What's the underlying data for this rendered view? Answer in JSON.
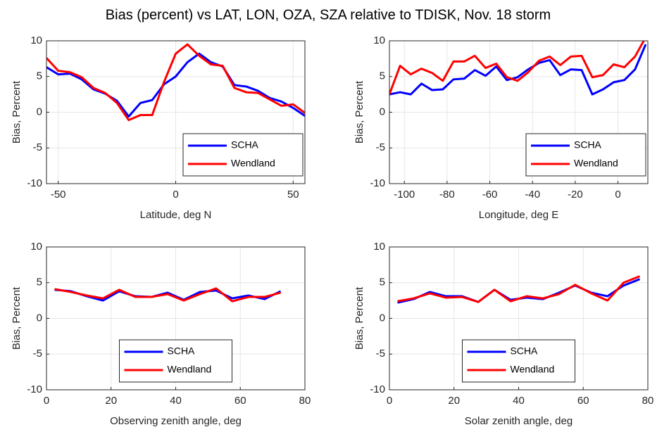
{
  "title": "Bias (percent) vs LAT, LON, OZA, SZA relative to TDISK, Nov. 18 storm",
  "chart_data": [
    {
      "type": "line",
      "xlabel": "Latitude, deg N",
      "ylabel": "Bias, Percent",
      "x": [
        -55,
        -50,
        -45,
        -40,
        -35,
        -30,
        -25,
        -20,
        -15,
        -10,
        -5,
        0,
        5,
        10,
        15,
        20,
        25,
        30,
        35,
        40,
        45,
        50,
        55
      ],
      "series": [
        {
          "name": "SCHA",
          "color": "#0000ff",
          "values": [
            6.3,
            5.3,
            5.4,
            4.6,
            3.2,
            2.6,
            1.6,
            -0.6,
            1.3,
            1.7,
            3.9,
            5.0,
            7.0,
            8.2,
            7.0,
            6.4,
            3.8,
            3.6,
            3.0,
            2.0,
            1.5,
            0.6,
            -0.5
          ]
        },
        {
          "name": "Wendland",
          "color": "#ff0000",
          "values": [
            7.6,
            5.8,
            5.6,
            4.9,
            3.4,
            2.7,
            1.3,
            -1.1,
            -0.4,
            -0.4,
            4.2,
            8.2,
            9.5,
            7.9,
            6.7,
            6.5,
            3.4,
            2.8,
            2.7,
            1.8,
            0.9,
            1.1,
            -0.1
          ]
        }
      ],
      "xlim": [
        -55,
        55
      ],
      "ylim": [
        -10,
        10
      ],
      "xticks": [
        -50,
        0,
        50
      ],
      "yticks": [
        -10,
        -5,
        0,
        5,
        10
      ],
      "grid": true,
      "legend": "lower right"
    },
    {
      "type": "line",
      "xlabel": "Longitude, deg E",
      "ylabel": "Bias, Percent",
      "x": [
        -107,
        -102,
        -97,
        -92,
        -87,
        -82,
        -77,
        -72,
        -67,
        -62,
        -57,
        -52,
        -47,
        -42,
        -37,
        -32,
        -27,
        -22,
        -17,
        -12,
        -7,
        -2,
        3,
        8,
        13
      ],
      "series": [
        {
          "name": "SCHA",
          "color": "#0000ff",
          "values": [
            2.5,
            2.8,
            2.5,
            4.0,
            3.1,
            3.2,
            4.6,
            4.7,
            5.9,
            5.1,
            6.4,
            4.5,
            4.9,
            6.0,
            6.9,
            7.3,
            5.2,
            6.0,
            5.9,
            2.5,
            3.2,
            4.2,
            4.5,
            6.0,
            9.5
          ]
        },
        {
          "name": "Wendland",
          "color": "#ff0000",
          "values": [
            2.5,
            6.5,
            5.3,
            6.1,
            5.5,
            4.4,
            7.1,
            7.1,
            7.9,
            6.2,
            6.8,
            4.9,
            4.4,
            5.6,
            7.2,
            7.8,
            6.6,
            7.8,
            7.9,
            4.9,
            5.2,
            6.7,
            6.3,
            7.8,
            10.5
          ]
        }
      ],
      "xlim": [
        -107,
        14
      ],
      "ylim": [
        -10,
        10
      ],
      "xticks": [
        -100,
        -80,
        -60,
        -40,
        -20,
        0
      ],
      "yticks": [
        -10,
        -5,
        0,
        5,
        10
      ],
      "grid": true,
      "legend": "lower right"
    },
    {
      "type": "line",
      "xlabel": "Observing zenith angle, deg",
      "ylabel": "Bias, Percent",
      "x": [
        2.5,
        7.5,
        12.5,
        17.5,
        22.5,
        27.5,
        32.5,
        37.5,
        42.5,
        47.5,
        52.5,
        57.5,
        62.5,
        67.5,
        72.5
      ],
      "series": [
        {
          "name": "SCHA",
          "color": "#0000ff",
          "values": [
            4.0,
            3.8,
            3.1,
            2.5,
            3.8,
            3.1,
            3.0,
            3.6,
            2.6,
            3.7,
            3.9,
            2.8,
            3.2,
            2.7,
            3.8
          ]
        },
        {
          "name": "Wendland",
          "color": "#ff0000",
          "values": [
            4.1,
            3.7,
            3.2,
            2.8,
            4.0,
            3.0,
            3.0,
            3.4,
            2.5,
            3.4,
            4.2,
            2.4,
            3.0,
            3.0,
            3.6
          ]
        }
      ],
      "xlim": [
        0,
        80
      ],
      "ylim": [
        -10,
        10
      ],
      "xticks": [
        0,
        20,
        40,
        60,
        80
      ],
      "yticks": [
        -10,
        -5,
        0,
        5,
        10
      ],
      "grid": true,
      "legend": "lower center"
    },
    {
      "type": "line",
      "xlabel": "Solar zenith angle, deg",
      "ylabel": "Bias, Percent",
      "x": [
        2.5,
        7.5,
        12.5,
        17.5,
        22.5,
        27.5,
        32.5,
        37.5,
        42.5,
        47.5,
        52.5,
        57.5,
        62.5,
        67.5,
        72.5,
        77.5
      ],
      "series": [
        {
          "name": "SCHA",
          "color": "#0000ff",
          "values": [
            2.2,
            2.7,
            3.7,
            3.1,
            3.1,
            2.3,
            4.0,
            2.6,
            2.9,
            2.7,
            3.6,
            4.6,
            3.6,
            3.1,
            4.6,
            5.5
          ]
        },
        {
          "name": "Wendland",
          "color": "#ff0000",
          "values": [
            2.4,
            2.8,
            3.5,
            2.9,
            3.0,
            2.3,
            4.0,
            2.4,
            3.1,
            2.8,
            3.4,
            4.7,
            3.5,
            2.5,
            5.0,
            5.9
          ]
        }
      ],
      "xlim": [
        0,
        80
      ],
      "ylim": [
        -10,
        10
      ],
      "xticks": [
        0,
        20,
        40,
        60,
        80
      ],
      "yticks": [
        -10,
        -5,
        0,
        5,
        10
      ],
      "grid": true,
      "legend": "lower center"
    }
  ]
}
